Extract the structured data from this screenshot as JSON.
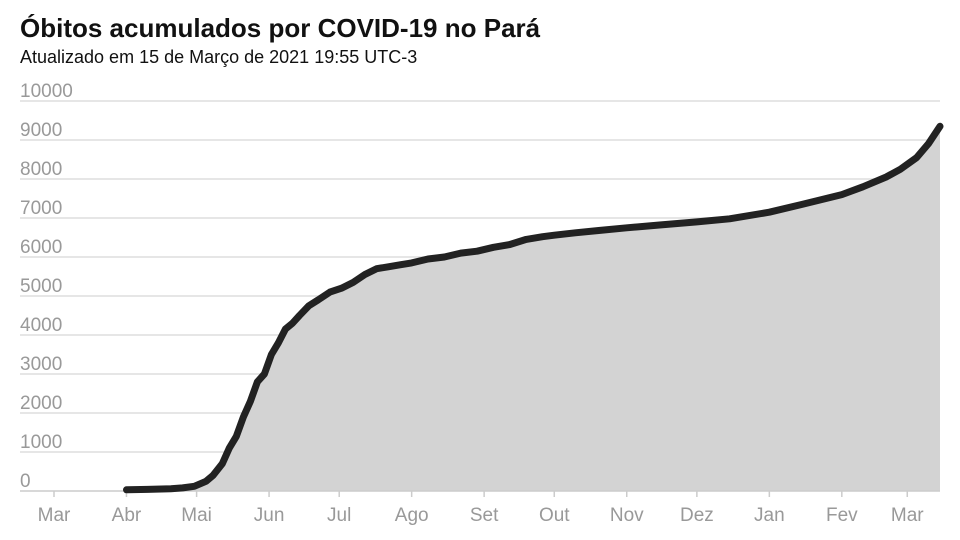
{
  "chart_data": {
    "type": "area",
    "title": "Óbitos acumulados por COVID-19 no Pará",
    "subtitle": "Atualizado em 15 de Março de 2021 19:55 UTC-3",
    "ylim": [
      0,
      10000
    ],
    "xlim": [
      "2020-03-01",
      "2021-03-15"
    ],
    "yticks": [
      0,
      1000,
      2000,
      3000,
      4000,
      5000,
      6000,
      7000,
      8000,
      9000,
      10000
    ],
    "x_ticks": [
      {
        "label": "Mar",
        "date": "2020-03-01"
      },
      {
        "label": "Abr",
        "date": "2020-04-01"
      },
      {
        "label": "Mai",
        "date": "2020-05-01"
      },
      {
        "label": "Jun",
        "date": "2020-06-01"
      },
      {
        "label": "Jul",
        "date": "2020-07-01"
      },
      {
        "label": "Ago",
        "date": "2020-08-01"
      },
      {
        "label": "Set",
        "date": "2020-09-01"
      },
      {
        "label": "Out",
        "date": "2020-10-01"
      },
      {
        "label": "Nov",
        "date": "2020-11-01"
      },
      {
        "label": "Dez",
        "date": "2020-12-01"
      },
      {
        "label": "Jan",
        "date": "2021-01-01"
      },
      {
        "label": "Fev",
        "date": "2021-02-01"
      },
      {
        "label": "Mar",
        "date": "2021-03-01"
      }
    ],
    "grid": true,
    "series": [
      {
        "x": [
          "2020-04-01",
          "2020-04-10",
          "2020-04-20",
          "2020-04-25",
          "2020-04-30",
          "2020-05-05",
          "2020-05-08",
          "2020-05-12",
          "2020-05-15",
          "2020-05-18",
          "2020-05-21",
          "2020-05-24",
          "2020-05-27",
          "2020-05-30",
          "2020-06-02",
          "2020-06-05",
          "2020-06-08",
          "2020-06-11",
          "2020-06-14",
          "2020-06-18",
          "2020-06-22",
          "2020-06-27",
          "2020-07-02",
          "2020-07-07",
          "2020-07-12",
          "2020-07-17",
          "2020-07-22",
          "2020-07-27",
          "2020-08-01",
          "2020-08-08",
          "2020-08-15",
          "2020-08-22",
          "2020-08-29",
          "2020-09-05",
          "2020-09-12",
          "2020-09-19",
          "2020-09-26",
          "2020-10-01",
          "2020-10-10",
          "2020-10-20",
          "2020-11-01",
          "2020-11-15",
          "2020-12-01",
          "2020-12-15",
          "2021-01-01",
          "2021-01-15",
          "2021-02-01",
          "2021-02-10",
          "2021-02-20",
          "2021-02-26",
          "2021-03-05",
          "2021-03-10",
          "2021-03-15"
        ],
        "y": [
          30,
          40,
          60,
          80,
          120,
          250,
          400,
          700,
          1100,
          1400,
          1900,
          2300,
          2800,
          3000,
          3500,
          3800,
          4150,
          4300,
          4500,
          4750,
          4900,
          5100,
          5200,
          5350,
          5550,
          5700,
          5750,
          5800,
          5850,
          5950,
          6000,
          6100,
          6150,
          6250,
          6320,
          6450,
          6520,
          6560,
          6620,
          6680,
          6750,
          6820,
          6900,
          6980,
          7150,
          7350,
          7600,
          7800,
          8050,
          8250,
          8550,
          8900,
          9350
        ]
      }
    ]
  }
}
